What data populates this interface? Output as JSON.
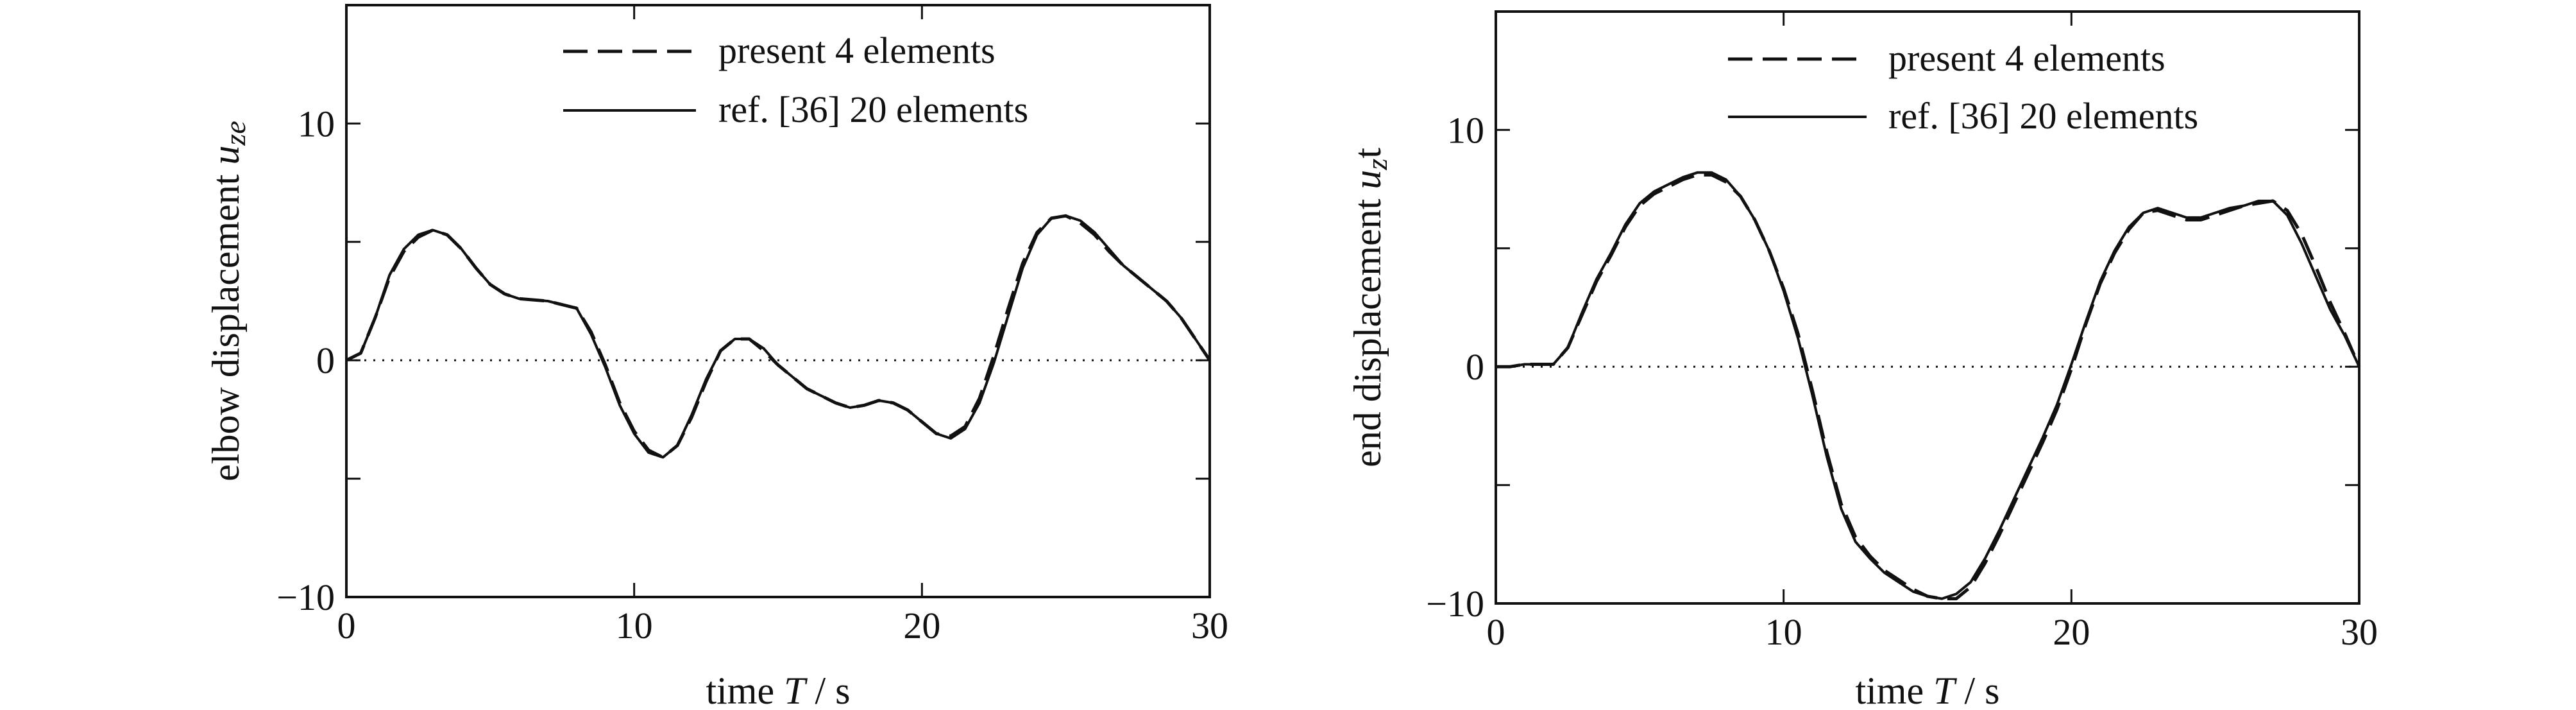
{
  "chart_data": [
    {
      "type": "line",
      "xlabel": {
        "prefix": "time ",
        "var": "T",
        "suffix": " / s"
      },
      "ylabel": {
        "prefix": "elbow displacement ",
        "var": "u",
        "sub": "ze"
      },
      "xlim": [
        0,
        30
      ],
      "ylim": [
        -10,
        15
      ],
      "xticks": [
        0,
        10,
        20,
        30
      ],
      "yticks": [
        -10,
        0,
        10
      ],
      "xtick_labels": [
        "0",
        "10",
        "20",
        "30"
      ],
      "ytick_labels": [
        "−10",
        "0",
        "10"
      ],
      "legend": {
        "position": "top-right"
      },
      "zero_line": true,
      "series": [
        {
          "name": "present 4 elements",
          "style": "dashed",
          "x": [
            0,
            0.5,
            1,
            1.5,
            2,
            2.5,
            3,
            3.5,
            4,
            4.5,
            5,
            5.5,
            6,
            7,
            8,
            8.5,
            9,
            9.5,
            10,
            10.5,
            11,
            11.5,
            12,
            12.5,
            13,
            13.5,
            14,
            14.5,
            15,
            16,
            17,
            17.5,
            18,
            18.5,
            19,
            19.5,
            20,
            20.5,
            21,
            21.5,
            22,
            22.5,
            23,
            23.5,
            24,
            24.5,
            25,
            25.5,
            26,
            26.5,
            27,
            27.5,
            28,
            28.5,
            29,
            29.5,
            30
          ],
          "y": [
            0,
            0.3,
            1.8,
            3.5,
            4.6,
            5.2,
            5.5,
            5.3,
            4.7,
            3.9,
            3.2,
            2.8,
            2.6,
            2.5,
            2.2,
            1.2,
            -0.2,
            -1.8,
            -3,
            -3.8,
            -4.1,
            -3.6,
            -2.4,
            -0.9,
            0.4,
            0.9,
            0.9,
            0.4,
            -0.2,
            -1.2,
            -1.8,
            -2,
            -1.9,
            -1.7,
            -1.8,
            -2.1,
            -2.6,
            -3.1,
            -3.2,
            -2.8,
            -1.6,
            0.2,
            2.2,
            4.1,
            5.4,
            6,
            6.1,
            5.8,
            5.3,
            4.6,
            4,
            3.5,
            3,
            2.5,
            1.8,
            0.9,
            0
          ],
          "color": "#111111"
        },
        {
          "name": "ref. [36] 20 elements",
          "style": "solid",
          "x": [
            0,
            0.5,
            1,
            1.5,
            2,
            2.5,
            3,
            3.5,
            4,
            4.5,
            5,
            5.5,
            6,
            7,
            8,
            8.5,
            9,
            9.5,
            10,
            10.5,
            11,
            11.5,
            12,
            12.5,
            13,
            13.5,
            14,
            14.5,
            15,
            16,
            17,
            17.5,
            18,
            18.5,
            19,
            19.5,
            20,
            20.5,
            21,
            21.5,
            22,
            22.5,
            23,
            23.5,
            24,
            24.5,
            25,
            25.5,
            26,
            26.5,
            27,
            27.5,
            28,
            28.5,
            29,
            29.5,
            30
          ],
          "y": [
            0,
            0.3,
            1.8,
            3.6,
            4.7,
            5.3,
            5.5,
            5.3,
            4.7,
            3.9,
            3.2,
            2.8,
            2.6,
            2.5,
            2.2,
            1.1,
            -0.3,
            -1.9,
            -3.1,
            -3.9,
            -4.1,
            -3.6,
            -2.3,
            -0.8,
            0.4,
            0.9,
            0.9,
            0.5,
            -0.2,
            -1.2,
            -1.8,
            -2,
            -1.9,
            -1.7,
            -1.8,
            -2.1,
            -2.6,
            -3.1,
            -3.3,
            -2.9,
            -1.8,
            -0.1,
            1.9,
            3.9,
            5.3,
            6,
            6.1,
            5.9,
            5.4,
            4.7,
            4,
            3.5,
            3,
            2.5,
            1.8,
            0.9,
            0
          ],
          "color": "#111111"
        }
      ]
    },
    {
      "type": "line",
      "xlabel": {
        "prefix": "time ",
        "var": "T",
        "suffix": " / s"
      },
      "ylabel": {
        "prefix": "end displacement  ",
        "var": "u",
        "sub": "z",
        "after": "t"
      },
      "xlim": [
        0,
        30
      ],
      "ylim": [
        -10,
        15
      ],
      "xticks": [
        0,
        10,
        20,
        30
      ],
      "yticks": [
        -10,
        0,
        10
      ],
      "xtick_labels": [
        "0",
        "10",
        "20",
        "30"
      ],
      "ytick_labels": [
        "−10",
        "0",
        "10"
      ],
      "legend": {
        "position": "top-right"
      },
      "zero_line": true,
      "series": [
        {
          "name": "present 4 elements",
          "style": "dashed",
          "x": [
            0,
            0.5,
            1,
            1.5,
            2,
            2.5,
            3,
            3.5,
            4,
            4.5,
            5,
            5.5,
            6,
            6.5,
            7,
            7.5,
            8,
            8.5,
            9,
            9.5,
            10,
            10.5,
            11,
            11.5,
            12,
            12.5,
            13,
            13.5,
            14,
            14.5,
            15,
            15.5,
            16,
            16.5,
            17,
            17.5,
            18,
            18.5,
            19,
            19.5,
            20,
            20.5,
            21,
            21.5,
            22,
            22.5,
            23,
            23.5,
            24,
            24.5,
            25,
            25.5,
            26,
            26.5,
            27,
            27.5,
            28,
            28.5,
            29,
            29.5,
            30
          ],
          "y": [
            0,
            0,
            0.1,
            0.1,
            0.1,
            0.8,
            2.2,
            3.6,
            4.7,
            5.9,
            6.8,
            7.3,
            7.6,
            7.9,
            8.1,
            8.1,
            7.8,
            7.2,
            6.2,
            4.9,
            3.3,
            1.4,
            -1,
            -3.6,
            -5.8,
            -7.2,
            -8,
            -8.6,
            -9,
            -9.4,
            -9.7,
            -9.8,
            -9.8,
            -9.3,
            -8.3,
            -7.1,
            -5.8,
            -4.5,
            -3.2,
            -1.8,
            -0.1,
            1.8,
            3.5,
            4.8,
            5.8,
            6.5,
            6.6,
            6.4,
            6.2,
            6.2,
            6.4,
            6.6,
            6.8,
            6.9,
            7,
            6.6,
            5.6,
            4.2,
            2.7,
            1.4,
            0
          ],
          "color": "#111111"
        },
        {
          "name": "ref. [36] 20 elements",
          "style": "solid",
          "x": [
            0,
            0.5,
            1,
            1.5,
            2,
            2.5,
            3,
            3.5,
            4,
            4.5,
            5,
            5.5,
            6,
            6.5,
            7,
            7.5,
            8,
            8.5,
            9,
            9.5,
            10,
            10.5,
            11,
            11.5,
            12,
            12.5,
            13,
            13.5,
            14,
            14.5,
            15,
            15.5,
            16,
            16.5,
            17,
            17.5,
            18,
            18.5,
            19,
            19.5,
            20,
            20.5,
            21,
            21.5,
            22,
            22.5,
            23,
            23.5,
            24,
            24.5,
            25,
            25.5,
            26,
            26.5,
            27,
            27.5,
            28,
            28.5,
            29,
            29.5,
            30
          ],
          "y": [
            0,
            0,
            0.1,
            0.1,
            0.1,
            0.8,
            2.3,
            3.7,
            4.8,
            6,
            6.9,
            7.4,
            7.7,
            8,
            8.2,
            8.2,
            7.9,
            7.2,
            6.2,
            4.9,
            3.2,
            1.2,
            -1.2,
            -3.8,
            -6,
            -7.4,
            -8.1,
            -8.7,
            -9.1,
            -9.5,
            -9.7,
            -9.8,
            -9.6,
            -9.1,
            -8.1,
            -6.9,
            -5.6,
            -4.3,
            -3,
            -1.6,
            0.1,
            1.9,
            3.6,
            4.9,
            5.9,
            6.5,
            6.7,
            6.5,
            6.3,
            6.3,
            6.5,
            6.7,
            6.8,
            7,
            7,
            6.4,
            5.2,
            3.8,
            2.4,
            1.3,
            0
          ],
          "color": "#111111"
        }
      ]
    }
  ]
}
